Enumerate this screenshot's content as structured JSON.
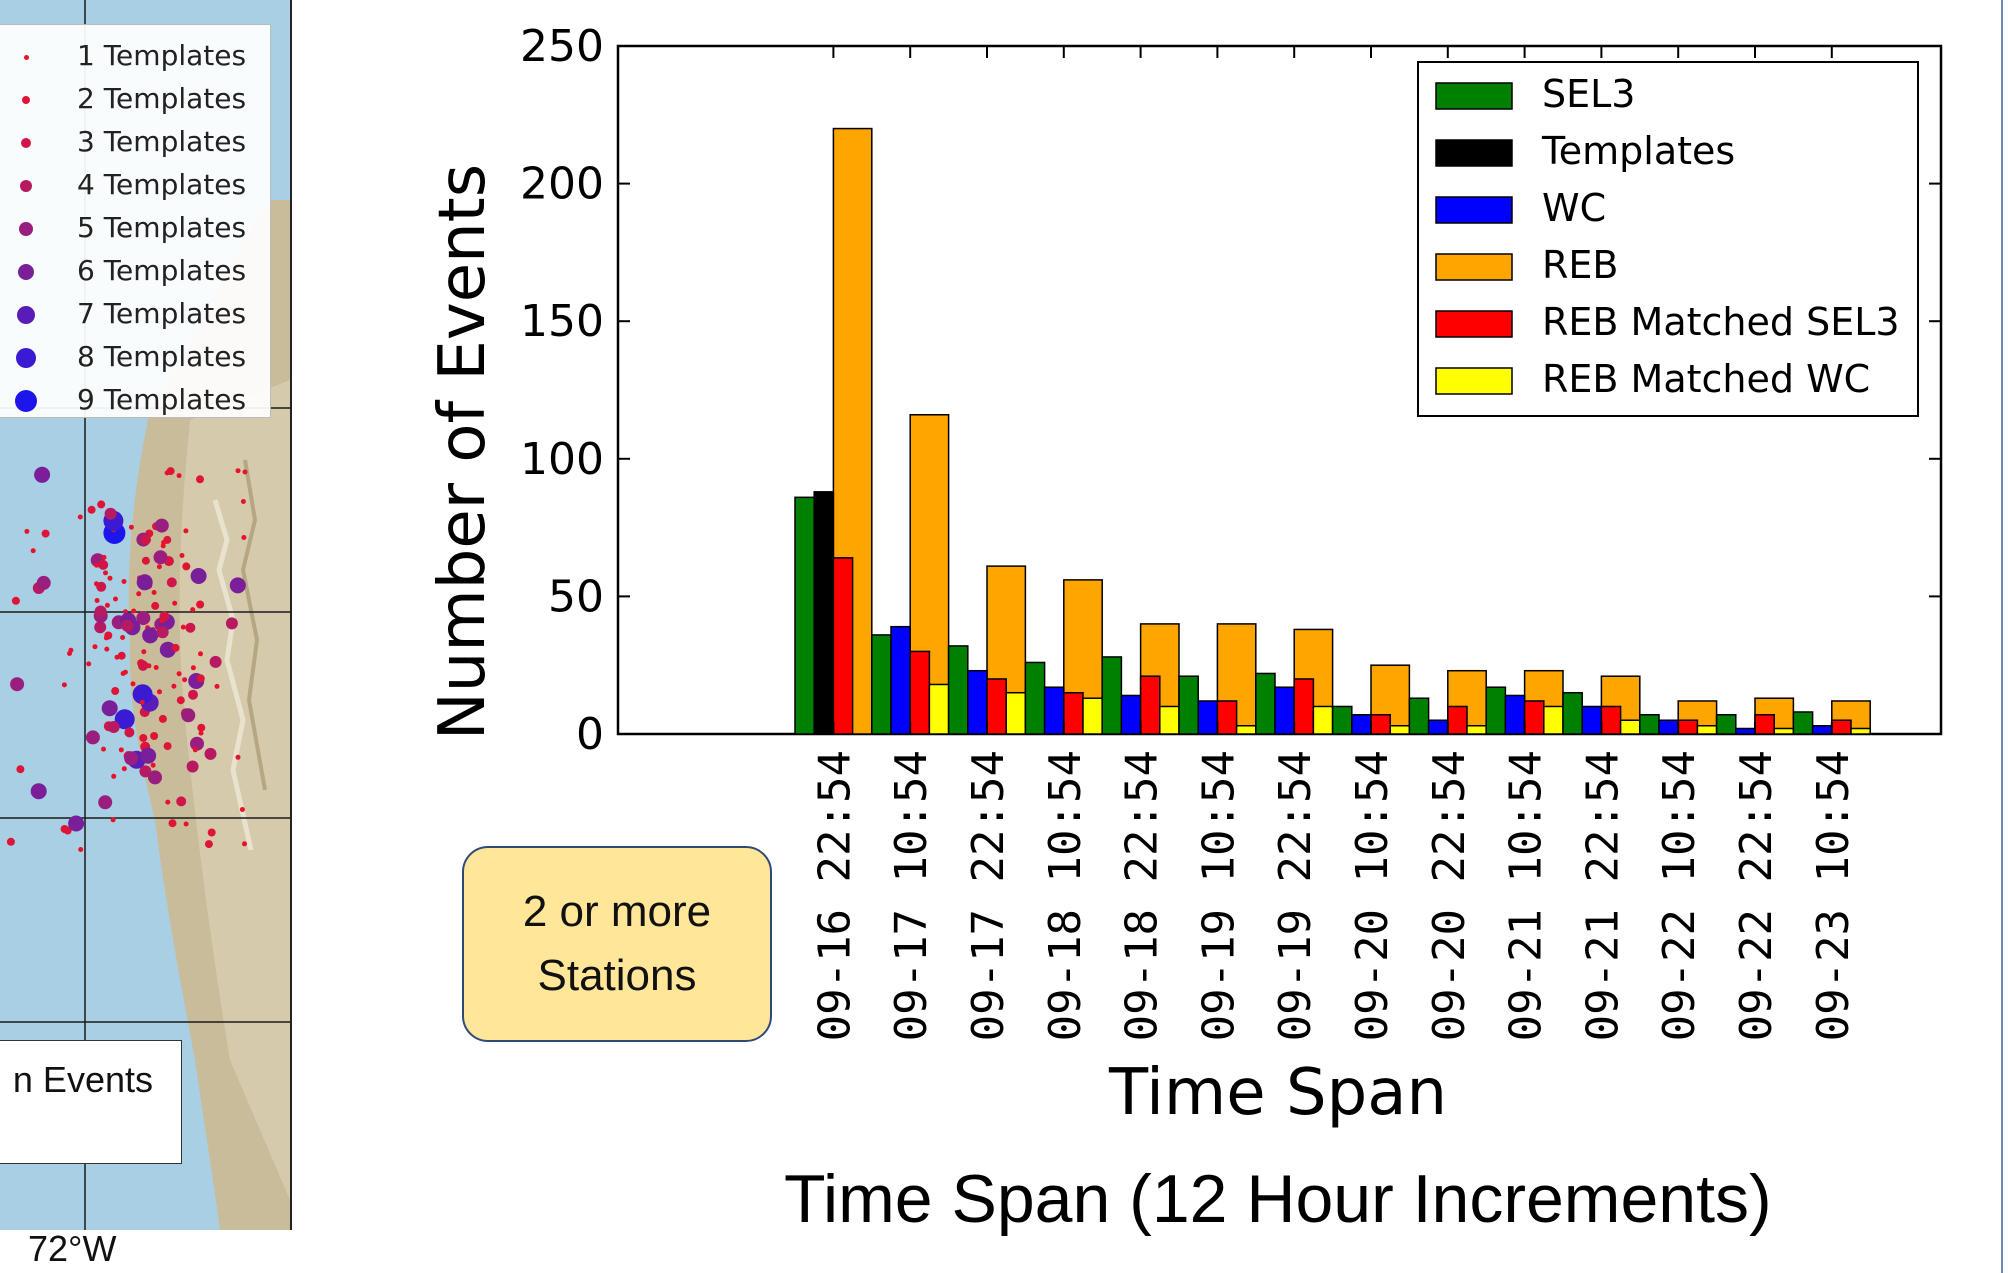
{
  "map": {
    "legend": [
      {
        "label": "1 Templates",
        "color": "#e8122a"
      },
      {
        "label": "2 Templates",
        "color": "#de1438"
      },
      {
        "label": "3 Templates",
        "color": "#d01648"
      },
      {
        "label": "4 Templates",
        "color": "#b81a62"
      },
      {
        "label": "5 Templates",
        "color": "#9a1e7e"
      },
      {
        "label": "6 Templates",
        "color": "#7a1e9a"
      },
      {
        "label": "7 Templates",
        "color": "#5a1cb8"
      },
      {
        "label": "8 Templates",
        "color": "#3a1ad2"
      },
      {
        "label": "9 Templates",
        "color": "#1d16ec"
      }
    ],
    "lon_label": "72°W",
    "event_box_text": "n Events"
  },
  "annotation": {
    "line1": "2 or more",
    "line2": "Stations"
  },
  "caption": "Time Span (12 Hour Increments)",
  "chart_data": {
    "type": "bar",
    "xlabel": "Time Span",
    "ylabel": "Number of Events",
    "ylim": [
      0,
      250
    ],
    "yticks": [
      0,
      50,
      100,
      150,
      200,
      250
    ],
    "grid": false,
    "legend_position": "top-right",
    "categories": [
      "09-16 22:54",
      "09-17 10:54",
      "09-17 22:54",
      "09-18 10:54",
      "09-18 22:54",
      "09-19 10:54",
      "09-19 22:54",
      "09-20 10:54",
      "09-20 22:54",
      "09-21 10:54",
      "09-21 22:54",
      "09-22 10:54",
      "09-22 22:54",
      "09-23 10:54"
    ],
    "series": [
      {
        "name": "SEL3",
        "color": "#008000",
        "values": [
          86,
          36,
          32,
          26,
          28,
          21,
          22,
          10,
          13,
          17,
          15,
          7,
          7,
          8
        ]
      },
      {
        "name": "Templates",
        "color": "#000000",
        "values": [
          88,
          0,
          0,
          0,
          0,
          0,
          0,
          0,
          0,
          0,
          0,
          0,
          0,
          0
        ]
      },
      {
        "name": "WC",
        "color": "#0000ff",
        "values": [
          0,
          39,
          23,
          17,
          14,
          12,
          17,
          7,
          5,
          14,
          10,
          5,
          2,
          3
        ]
      },
      {
        "name": "REB",
        "color": "#ffa500",
        "values": [
          220,
          116,
          61,
          56,
          40,
          40,
          38,
          25,
          23,
          23,
          21,
          12,
          13,
          12
        ]
      },
      {
        "name": "REB Matched SEL3",
        "color": "#ff0000",
        "values": [
          64,
          30,
          20,
          15,
          21,
          12,
          20,
          7,
          10,
          12,
          10,
          5,
          7,
          5
        ]
      },
      {
        "name": "REB Matched WC",
        "color": "#ffff00",
        "values": [
          0,
          18,
          15,
          13,
          10,
          3,
          10,
          3,
          3,
          10,
          5,
          3,
          2,
          2
        ]
      }
    ]
  }
}
